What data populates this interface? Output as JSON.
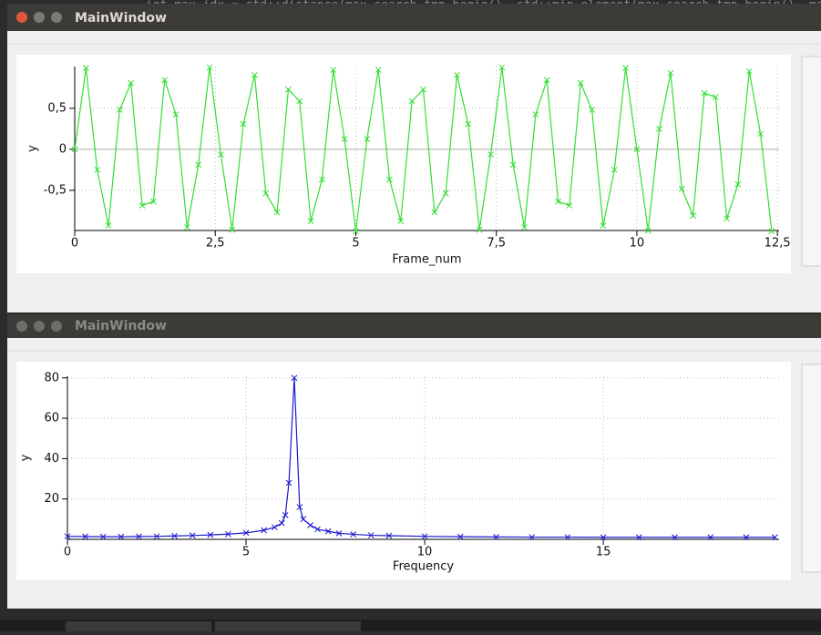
{
  "editor": {
    "code_line": "int max_idx = std::distance(max_search_tmp_begin(), std::min_element(max_search_tmp_begin(), ma"
  },
  "windows": [
    {
      "title": "MainWindow"
    },
    {
      "title": "MainWindow"
    }
  ],
  "chart_data": [
    {
      "type": "line",
      "xlabel": "Frame_num",
      "ylabel": "y",
      "color": "#33dd33",
      "marker": "x",
      "xlim": [
        0,
        12.53
      ],
      "ylim": [
        -0.99,
        1.01
      ],
      "xticks": [
        0,
        {
          "value": 2.5,
          "label": "2,5"
        },
        5,
        {
          "value": 7.5,
          "label": "7,5"
        },
        10,
        {
          "value": 12.5,
          "label": "12,5"
        }
      ],
      "yticks": [
        {
          "value": -0.5,
          "label": "-0,5"
        },
        0,
        {
          "value": 0.5,
          "label": "0,5"
        }
      ],
      "grid": true,
      "x": [
        0,
        0.2,
        0.4,
        0.6,
        0.8,
        1,
        1.2,
        1.4,
        1.6,
        1.8,
        2,
        2.2,
        2.4,
        2.6,
        2.8,
        3,
        3.2,
        3.4,
        3.6,
        3.8,
        4,
        4.2,
        4.4,
        4.6,
        4.8,
        5,
        5.2,
        5.4,
        5.6,
        5.8,
        6,
        6.2,
        6.4,
        6.6,
        6.8,
        7,
        7.2,
        7.4,
        7.6,
        7.8,
        8,
        8.2,
        8.4,
        8.6,
        8.8,
        9,
        9.2,
        9.4,
        9.6,
        9.8,
        10,
        10.2,
        10.4,
        10.6,
        10.8,
        11,
        11.2,
        11.4,
        11.6,
        11.8,
        12,
        12.2,
        12.4
      ],
      "values": [
        0,
        0.992,
        -0.249,
        -0.93,
        0.482,
        0.809,
        -0.685,
        -0.637,
        0.845,
        0.426,
        -0.951,
        -0.187,
        0.998,
        -0.063,
        -0.982,
        0.309,
        0.905,
        -0.536,
        -0.77,
        0.729,
        0.588,
        -0.876,
        -0.368,
        0.969,
        0.125,
        -1,
        0.125,
        0.969,
        -0.368,
        -0.876,
        0.588,
        0.729,
        -0.77,
        -0.536,
        0.905,
        0.309,
        -0.982,
        -0.063,
        0.998,
        -0.187,
        -0.951,
        0.426,
        0.845,
        -0.637,
        -0.685,
        0.809,
        0.482,
        -0.93,
        -0.249,
        0.992,
        0,
        -0.992,
        0.249,
        0.93,
        -0.482,
        -0.809,
        0.685,
        0.637,
        -0.845,
        -0.426,
        0.951,
        0.187,
        -0.998
      ]
    },
    {
      "type": "line",
      "xlabel": "Frequency",
      "ylabel": "y",
      "color": "#1a1acc",
      "marker": "x",
      "xlim": [
        0,
        19.92
      ],
      "ylim": [
        0,
        80.8
      ],
      "xticks": [
        0,
        5,
        10,
        15
      ],
      "yticks": [
        20,
        40,
        60,
        80
      ],
      "grid": true,
      "x": [
        0,
        0.5,
        1,
        1.5,
        2,
        2.5,
        3,
        3.5,
        4,
        4.5,
        5,
        5.5,
        5.8,
        6,
        6.1,
        6.2,
        6.35,
        6.5,
        6.6,
        6.8,
        7,
        7.3,
        7.6,
        8,
        8.5,
        9,
        10,
        11,
        12,
        13,
        14,
        15,
        16,
        17,
        18,
        19,
        19.8
      ],
      "values": [
        1.5,
        1.4,
        1.3,
        1.3,
        1.4,
        1.5,
        1.7,
        1.9,
        2.2,
        2.6,
        3.2,
        4.5,
        6,
        8,
        12,
        28,
        80,
        16,
        10,
        7,
        5,
        4,
        3,
        2.5,
        2,
        1.8,
        1.5,
        1.3,
        1.2,
        1.1,
        1.1,
        1,
        1,
        1,
        1,
        1,
        1
      ]
    }
  ]
}
